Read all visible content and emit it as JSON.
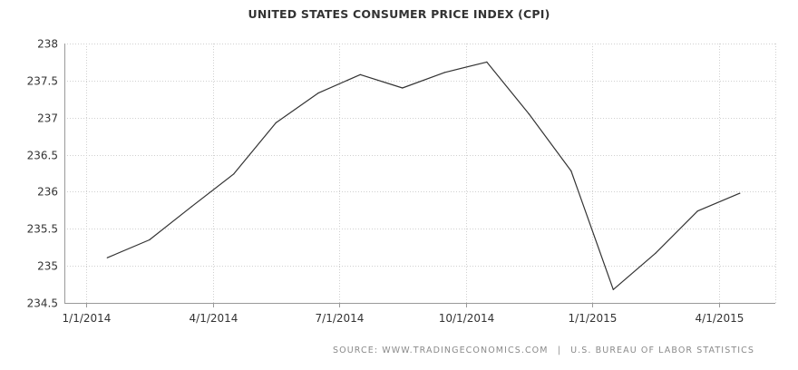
{
  "chart_data": {
    "type": "line",
    "title": "UNITED STATES CONSUMER PRICE INDEX (CPI)",
    "xlabel": "",
    "ylabel": "",
    "ylim": [
      234.5,
      238
    ],
    "yticks": [
      "234.5",
      "235",
      "235.5",
      "236",
      "236.5",
      "237",
      "237.5",
      "238"
    ],
    "ytick_values": [
      234.5,
      235,
      235.5,
      236,
      236.5,
      237,
      237.5,
      238
    ],
    "xticks": [
      "1/1/2014",
      "4/1/2014",
      "7/1/2014",
      "10/1/2014",
      "1/1/2015",
      "4/1/2015"
    ],
    "xtick_months": [
      0,
      3,
      6,
      9,
      12,
      15
    ],
    "xlim_months": [
      0,
      16.5
    ],
    "grid": true,
    "series": [
      {
        "name": "CPI",
        "color": "#333333",
        "x_months": [
          0.5,
          1.5,
          2.5,
          3.5,
          4.5,
          5.5,
          6.5,
          7.5,
          8.5,
          9.5,
          10.5,
          11.5,
          12.5,
          13.5,
          14.5,
          15.5
        ],
        "x": [
          "Jan 2014",
          "Feb 2014",
          "Mar 2014",
          "Apr 2014",
          "May 2014",
          "Jun 2014",
          "Jul 2014",
          "Aug 2014",
          "Sep 2014",
          "Oct 2014",
          "Nov 2014",
          "Dec 2014",
          "Jan 2015",
          "Feb 2015",
          "Mar 2015",
          "Apr 2015"
        ],
        "values": [
          235.11,
          235.35,
          235.8,
          236.24,
          236.93,
          237.33,
          237.58,
          237.4,
          237.61,
          237.75,
          237.05,
          236.28,
          234.68,
          235.17,
          235.74,
          235.98
        ]
      }
    ]
  },
  "source": {
    "label": "SOURCE: WWW.TRADINGECONOMICS.COM",
    "separator": "|",
    "agency": "U.S. BUREAU OF LABOR STATISTICS"
  }
}
